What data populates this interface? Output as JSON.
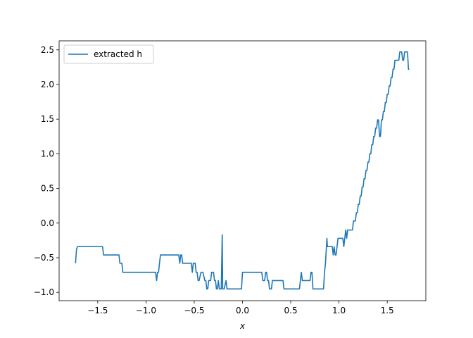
{
  "chart_data": {
    "type": "line",
    "title": "",
    "xlabel": "x",
    "ylabel": "",
    "xlim": [
      -1.9,
      1.9
    ],
    "ylim": [
      -1.12,
      2.63
    ],
    "grid": false,
    "legend_position": "top-left",
    "x_ticks": [
      -1.5,
      -1.0,
      -0.5,
      0.0,
      0.5,
      1.0,
      1.5
    ],
    "x_tick_labels": [
      "−1.5",
      "−1.0",
      "−0.5",
      "0.0",
      "0.5",
      "1.0",
      "1.5"
    ],
    "y_ticks": [
      -1.0,
      -0.5,
      0.0,
      0.5,
      1.0,
      1.5,
      2.0,
      2.5
    ],
    "y_tick_labels": [
      "−1.0",
      "−0.5",
      "0.0",
      "0.5",
      "1.0",
      "1.5",
      "2.0",
      "2.5"
    ],
    "series": [
      {
        "name": "extracted h",
        "color": "#1f77b4",
        "x": [
          -1.73,
          -1.72,
          -1.71,
          -1.45,
          -1.44,
          -1.28,
          -1.27,
          -1.25,
          -1.24,
          -0.91,
          -0.9,
          -0.89,
          -0.88,
          -0.87,
          -0.86,
          -0.85,
          -0.66,
          -0.65,
          -0.64,
          -0.63,
          -0.62,
          -0.61,
          -0.53,
          -0.52,
          -0.51,
          -0.5,
          -0.49,
          -0.48,
          -0.47,
          -0.46,
          -0.45,
          -0.43,
          -0.42,
          -0.41,
          -0.39,
          -0.38,
          -0.37,
          -0.36,
          -0.35,
          -0.33,
          -0.32,
          -0.31,
          -0.3,
          -0.29,
          -0.28,
          -0.27,
          -0.26,
          -0.25,
          -0.24,
          -0.23,
          -0.22,
          -0.21,
          -0.205,
          -0.2,
          -0.19,
          -0.17,
          -0.16,
          -0.15,
          -0.14,
          -0.01,
          0.0,
          0.2,
          0.21,
          0.23,
          0.24,
          0.25,
          0.26,
          0.27,
          0.28,
          0.3,
          0.31,
          0.32,
          0.33,
          0.42,
          0.43,
          0.59,
          0.6,
          0.61,
          0.62,
          0.63,
          0.64,
          0.7,
          0.71,
          0.72,
          0.73,
          0.84,
          0.85,
          0.86,
          0.865,
          0.87,
          0.875,
          0.88,
          0.89,
          0.9,
          0.93,
          0.94,
          0.95,
          0.96,
          0.97,
          0.98,
          0.99,
          1.0,
          1.04,
          1.05,
          1.06,
          1.07,
          1.08,
          1.09,
          1.1,
          1.11,
          1.12,
          1.13,
          1.14,
          1.15,
          1.16,
          1.17,
          1.18,
          1.19,
          1.2,
          1.21,
          1.22,
          1.23,
          1.24,
          1.25,
          1.26,
          1.27,
          1.28,
          1.29,
          1.3,
          1.31,
          1.32,
          1.33,
          1.34,
          1.35,
          1.36,
          1.37,
          1.38,
          1.39,
          1.4,
          1.41,
          1.42,
          1.43,
          1.44,
          1.45,
          1.46,
          1.47,
          1.48,
          1.49,
          1.5,
          1.51,
          1.52,
          1.53,
          1.54,
          1.55,
          1.56,
          1.57,
          1.58,
          1.59,
          1.6,
          1.61,
          1.62,
          1.63,
          1.64,
          1.65,
          1.66,
          1.67,
          1.68,
          1.69,
          1.7,
          1.71,
          1.72,
          1.73
        ],
        "y": [
          -0.58,
          -0.38,
          -0.34,
          -0.34,
          -0.46,
          -0.46,
          -0.58,
          -0.58,
          -0.71,
          -0.71,
          -0.71,
          -0.83,
          -0.71,
          -0.71,
          -0.58,
          -0.46,
          -0.46,
          -0.58,
          -0.46,
          -0.46,
          -0.58,
          -0.58,
          -0.58,
          -0.71,
          -0.58,
          -0.58,
          -0.58,
          -0.71,
          -0.71,
          -0.83,
          -0.83,
          -0.71,
          -0.71,
          -0.71,
          -0.83,
          -0.83,
          -0.95,
          -0.95,
          -0.83,
          -0.83,
          -0.71,
          -0.71,
          -0.71,
          -0.83,
          -0.83,
          -0.95,
          -0.95,
          -0.83,
          -0.95,
          -0.95,
          -0.95,
          -0.17,
          -0.95,
          -0.95,
          -0.95,
          -0.83,
          -0.95,
          -0.95,
          -0.95,
          -0.95,
          -0.71,
          -0.71,
          -0.83,
          -0.83,
          -0.71,
          -0.71,
          -0.83,
          -0.83,
          -0.95,
          -0.95,
          -0.83,
          -0.83,
          -0.83,
          -0.83,
          -0.95,
          -0.95,
          -0.83,
          -0.71,
          -0.83,
          -0.83,
          -0.83,
          -0.83,
          -0.71,
          -0.71,
          -0.95,
          -0.95,
          -0.71,
          -0.58,
          -0.46,
          -0.34,
          -0.22,
          -0.34,
          -0.34,
          -0.34,
          -0.34,
          -0.46,
          -0.34,
          -0.46,
          -0.46,
          -0.34,
          -0.22,
          -0.22,
          -0.22,
          -0.34,
          -0.22,
          -0.1,
          -0.22,
          -0.1,
          -0.1,
          -0.1,
          -0.1,
          -0.1,
          -0.1,
          0.03,
          0.03,
          0.03,
          0.15,
          0.15,
          0.27,
          0.27,
          0.39,
          0.39,
          0.52,
          0.52,
          0.64,
          0.64,
          0.76,
          0.76,
          0.88,
          0.88,
          1.0,
          1.0,
          1.13,
          1.13,
          1.25,
          1.25,
          1.37,
          1.37,
          1.49,
          1.49,
          1.25,
          1.25,
          1.49,
          1.49,
          1.61,
          1.61,
          1.74,
          1.74,
          1.86,
          1.86,
          1.98,
          1.98,
          2.1,
          2.1,
          2.22,
          2.22,
          2.35,
          2.35,
          2.35,
          2.35,
          2.35,
          2.47,
          2.47,
          2.47,
          2.35,
          2.35,
          2.47,
          2.47,
          2.47,
          2.47,
          2.22,
          2.22
        ]
      }
    ]
  }
}
